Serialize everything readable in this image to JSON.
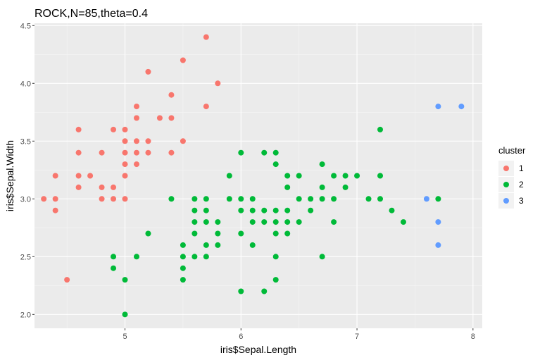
{
  "chart_data": {
    "type": "scatter",
    "title": "ROCK,N=85,theta=0.4",
    "xlabel": "iris$Sepal.Length",
    "ylabel": "iris$Sepal.Width",
    "xlim": [
      4.22,
      8.08
    ],
    "ylim": [
      1.88,
      4.52
    ],
    "xticks": [
      5,
      6,
      7,
      8
    ],
    "xtick_labels": [
      "5",
      "6",
      "7",
      "8"
    ],
    "yticks": [
      2.0,
      2.5,
      3.0,
      3.5,
      4.0,
      4.5
    ],
    "ytick_labels": [
      "2.0",
      "2.5",
      "3.0",
      "3.5",
      "4.0",
      "4.5"
    ],
    "grid": true,
    "legend": {
      "title": "cluster",
      "position": "right"
    },
    "series": [
      {
        "name": "1",
        "color": "#F8766D",
        "points": [
          [
            4.3,
            3.0
          ],
          [
            4.4,
            3.2
          ],
          [
            4.4,
            3.0
          ],
          [
            4.4,
            2.9
          ],
          [
            4.5,
            2.3
          ],
          [
            4.6,
            3.6
          ],
          [
            4.6,
            3.4
          ],
          [
            4.6,
            3.2
          ],
          [
            4.6,
            3.1
          ],
          [
            4.7,
            3.2
          ],
          [
            4.8,
            3.4
          ],
          [
            4.8,
            3.1
          ],
          [
            4.8,
            3.0
          ],
          [
            4.9,
            3.6
          ],
          [
            4.9,
            3.1
          ],
          [
            4.9,
            3.0
          ],
          [
            5.0,
            3.6
          ],
          [
            5.0,
            3.5
          ],
          [
            5.0,
            3.4
          ],
          [
            5.0,
            3.3
          ],
          [
            5.0,
            3.2
          ],
          [
            5.0,
            3.0
          ],
          [
            5.1,
            3.8
          ],
          [
            5.1,
            3.7
          ],
          [
            5.1,
            3.5
          ],
          [
            5.1,
            3.4
          ],
          [
            5.1,
            3.3
          ],
          [
            5.2,
            4.1
          ],
          [
            5.2,
            3.5
          ],
          [
            5.2,
            3.4
          ],
          [
            5.3,
            3.7
          ],
          [
            5.4,
            3.9
          ],
          [
            5.4,
            3.7
          ],
          [
            5.4,
            3.4
          ],
          [
            5.5,
            4.2
          ],
          [
            5.5,
            3.5
          ],
          [
            5.7,
            4.4
          ],
          [
            5.7,
            3.8
          ],
          [
            5.8,
            4.0
          ]
        ]
      },
      {
        "name": "2",
        "color": "#00BA38",
        "points": [
          [
            4.9,
            2.5
          ],
          [
            4.9,
            2.4
          ],
          [
            5.0,
            2.3
          ],
          [
            5.0,
            2.0
          ],
          [
            5.1,
            2.5
          ],
          [
            5.2,
            2.7
          ],
          [
            5.4,
            3.0
          ],
          [
            5.5,
            2.6
          ],
          [
            5.5,
            2.5
          ],
          [
            5.5,
            2.4
          ],
          [
            5.5,
            2.3
          ],
          [
            5.6,
            3.0
          ],
          [
            5.6,
            2.9
          ],
          [
            5.6,
            2.8
          ],
          [
            5.6,
            2.7
          ],
          [
            5.6,
            2.5
          ],
          [
            5.7,
            3.0
          ],
          [
            5.7,
            2.9
          ],
          [
            5.7,
            2.8
          ],
          [
            5.7,
            2.6
          ],
          [
            5.7,
            2.5
          ],
          [
            5.8,
            2.8
          ],
          [
            5.8,
            2.7
          ],
          [
            5.8,
            2.6
          ],
          [
            5.9,
            3.2
          ],
          [
            5.9,
            3.0
          ],
          [
            6.0,
            3.4
          ],
          [
            6.0,
            3.0
          ],
          [
            6.0,
            2.9
          ],
          [
            6.0,
            2.7
          ],
          [
            6.0,
            2.2
          ],
          [
            6.1,
            3.0
          ],
          [
            6.1,
            2.9
          ],
          [
            6.1,
            2.8
          ],
          [
            6.1,
            2.6
          ],
          [
            6.2,
            3.4
          ],
          [
            6.2,
            2.9
          ],
          [
            6.2,
            2.8
          ],
          [
            6.2,
            2.2
          ],
          [
            6.3,
            3.4
          ],
          [
            6.3,
            3.3
          ],
          [
            6.3,
            2.9
          ],
          [
            6.3,
            2.8
          ],
          [
            6.3,
            2.7
          ],
          [
            6.3,
            2.5
          ],
          [
            6.3,
            2.3
          ],
          [
            6.4,
            3.2
          ],
          [
            6.4,
            3.1
          ],
          [
            6.4,
            2.9
          ],
          [
            6.4,
            2.8
          ],
          [
            6.4,
            2.7
          ],
          [
            6.5,
            3.2
          ],
          [
            6.5,
            3.0
          ],
          [
            6.5,
            2.8
          ],
          [
            6.6,
            3.0
          ],
          [
            6.6,
            2.9
          ],
          [
            6.7,
            3.3
          ],
          [
            6.7,
            3.1
          ],
          [
            6.7,
            3.0
          ],
          [
            6.7,
            2.5
          ],
          [
            6.8,
            3.2
          ],
          [
            6.8,
            3.0
          ],
          [
            6.8,
            2.8
          ],
          [
            6.9,
            3.2
          ],
          [
            6.9,
            3.1
          ],
          [
            7.0,
            3.2
          ],
          [
            7.1,
            3.0
          ],
          [
            7.2,
            3.6
          ],
          [
            7.2,
            3.2
          ],
          [
            7.2,
            3.0
          ],
          [
            7.3,
            2.9
          ],
          [
            7.4,
            2.8
          ],
          [
            7.7,
            3.0
          ]
        ]
      },
      {
        "name": "3",
        "color": "#619CFF",
        "points": [
          [
            7.6,
            3.0
          ],
          [
            7.7,
            3.8
          ],
          [
            7.7,
            2.8
          ],
          [
            7.7,
            2.6
          ],
          [
            7.9,
            3.8
          ]
        ]
      }
    ]
  }
}
